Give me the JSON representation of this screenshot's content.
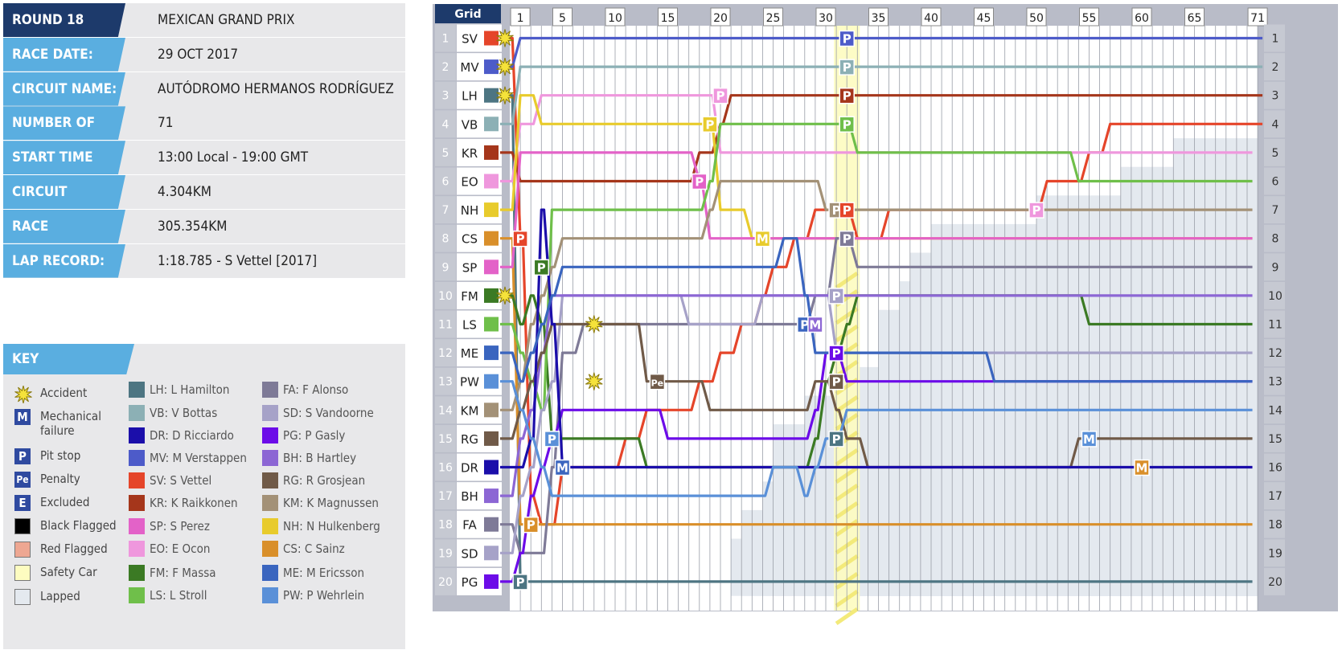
{
  "info": {
    "round": {
      "label": "ROUND 18",
      "value": "MEXICAN GRAND PRIX"
    },
    "rows": [
      {
        "label": "RACE DATE:",
        "value": "29 OCT 2017"
      },
      {
        "label": "CIRCUIT NAME:",
        "value": "AUTÓDROMO HERMANOS RODRÍGUEZ"
      },
      {
        "label": "NUMBER OF LAPS:",
        "value": "71"
      },
      {
        "label": "START TIME",
        "value": "13:00 Local - 19:00 GMT"
      },
      {
        "label": "CIRCUIT LENGTH:",
        "value": "4.304KM"
      },
      {
        "label": "RACE DISTANCE:",
        "value": "305.354KM"
      },
      {
        "label": "LAP RECORD:",
        "value": "1:18.785 - S Vettel [2017]"
      }
    ]
  },
  "key": {
    "title": "KEY",
    "symbols": [
      {
        "icon": "accident-star-icon",
        "label": "Accident"
      },
      {
        "icon": "mechanical-failure-icon",
        "glyph": "M",
        "label": "Mechanical failure"
      },
      {
        "icon": "pit-stop-icon",
        "glyph": "P",
        "label": "Pit stop"
      },
      {
        "icon": "penalty-icon",
        "glyph": "Pe",
        "label": "Penalty"
      },
      {
        "icon": "excluded-icon",
        "glyph": "E",
        "label": "Excluded"
      },
      {
        "icon": "black-flag-icon",
        "color": "#000000",
        "label": "Black Flagged"
      },
      {
        "icon": "red-flag-icon",
        "color": "#eea792",
        "label": "Red Flagged"
      },
      {
        "icon": "safety-car-icon",
        "color": "#fdfcc0",
        "label": "Safety Car"
      },
      {
        "icon": "lapped-icon",
        "color": "#e4e9ef",
        "label": "Lapped"
      }
    ]
  },
  "drivers": [
    {
      "code": "LH",
      "name": "L Hamilton",
      "color": "#4d7582"
    },
    {
      "code": "VB",
      "name": "V Bottas",
      "color": "#8cb0b5"
    },
    {
      "code": "DR",
      "name": "D Ricciardo",
      "color": "#1b0eaa"
    },
    {
      "code": "MV",
      "name": "M Verstappen",
      "color": "#4d5bc9"
    },
    {
      "code": "SV",
      "name": "S Vettel",
      "color": "#e5452a"
    },
    {
      "code": "KR",
      "name": "K Raikkonen",
      "color": "#a5361b"
    },
    {
      "code": "SP",
      "name": "S Perez",
      "color": "#e362c8"
    },
    {
      "code": "EO",
      "name": "E Ocon",
      "color": "#ef97dd"
    },
    {
      "code": "FM",
      "name": "F Massa",
      "color": "#3b7a24"
    },
    {
      "code": "LS",
      "name": "L Stroll",
      "color": "#6fbf4a"
    },
    {
      "code": "FA",
      "name": "F Alonso",
      "color": "#7e7a97"
    },
    {
      "code": "SD",
      "name": "S Vandoorne",
      "color": "#a6a2c8"
    },
    {
      "code": "PG",
      "name": "P Gasly",
      "color": "#6c0ce8"
    },
    {
      "code": "BH",
      "name": "B Hartley",
      "color": "#8c66d4"
    },
    {
      "code": "RG",
      "name": "R Grosjean",
      "color": "#705a48"
    },
    {
      "code": "KM",
      "name": "K Magnussen",
      "color": "#a39177"
    },
    {
      "code": "NH",
      "name": "N Hulkenberg",
      "color": "#e8cb2c"
    },
    {
      "code": "CS",
      "name": "C Sainz",
      "color": "#d98f2a"
    },
    {
      "code": "ME",
      "name": "M Ericsson",
      "color": "#3a65bf"
    },
    {
      "code": "PW",
      "name": "P Wehrlein",
      "color": "#5a90d8"
    }
  ],
  "chart_data": {
    "type": "line",
    "title": "",
    "grid_header": "Grid",
    "total_laps": 71,
    "lap_ticks": [
      1,
      5,
      10,
      15,
      20,
      25,
      30,
      35,
      40,
      45,
      50,
      55,
      60,
      65,
      71
    ],
    "positions": [
      1,
      2,
      3,
      4,
      5,
      6,
      7,
      8,
      9,
      10,
      11,
      12,
      13,
      14,
      15,
      16,
      17,
      18,
      19,
      20
    ],
    "safety_car": [
      [
        31,
        33
      ]
    ],
    "grid_order": [
      "SV",
      "MV",
      "LH",
      "VB",
      "KR",
      "EO",
      "NH",
      "CS",
      "SP",
      "FM",
      "LS",
      "ME",
      "PW",
      "KM",
      "RG",
      "DR",
      "BH",
      "FA",
      "SD",
      "PG"
    ],
    "series": [
      {
        "code": "SV",
        "pos": {
          "0": 1,
          "1": 8,
          "2": 17,
          "3": 18,
          "4": 18,
          "5": 16,
          "6": 16,
          "7": 16,
          "8": 16,
          "9": 16,
          "10": 16,
          "11": 15,
          "12": 15,
          "13": 14,
          "14": 14,
          "15": 14,
          "16": 14,
          "17": 14,
          "18": 13,
          "19": 13,
          "20": 12,
          "21": 12,
          "22": 11,
          "23": 11,
          "24": 10,
          "25": 9,
          "26": 9,
          "27": 8,
          "28": 8,
          "29": 7,
          "30": 7,
          "31": 7,
          "32": 7,
          "33": 8,
          "34": 8,
          "35": 8,
          "36": 7,
          "37": 7,
          "38": 7,
          "39": 7,
          "40": 7,
          "41": 7,
          "42": 7,
          "43": 7,
          "44": 7,
          "45": 7,
          "46": 7,
          "47": 7,
          "48": 7,
          "49": 7,
          "50": 7,
          "51": 6,
          "52": 6,
          "53": 6,
          "54": 6,
          "55": 5,
          "56": 5,
          "57": 4,
          "58": 4,
          "59": 4,
          "60": 4,
          "61": 4,
          "62": 4,
          "63": 4,
          "64": 4,
          "65": 4,
          "66": 4,
          "67": 4,
          "68": 4,
          "69": 4,
          "70": 4
        }
      },
      {
        "code": "MV",
        "pos": {
          "0": 2,
          "1": 1,
          "70": 1
        }
      },
      {
        "code": "LH",
        "pos": {
          "0": 3,
          "1": 20,
          "70": 20
        }
      },
      {
        "code": "VB",
        "pos": {
          "0": 4,
          "1": 2,
          "70": 2
        }
      },
      {
        "code": "KR",
        "pos": {
          "0": 5,
          "1": 6,
          "17": 6,
          "18": 5,
          "19": 5,
          "20": 4,
          "21": 3,
          "70": 3
        }
      },
      {
        "code": "EO",
        "pos": {
          "0": 6,
          "1": 4,
          "2": 4,
          "3": 3,
          "4": 3,
          "5": 3,
          "6": 3,
          "7": 3,
          "8": 3,
          "9": 3,
          "10": 3,
          "11": 3,
          "12": 3,
          "13": 3,
          "14": 3,
          "15": 3,
          "16": 3,
          "17": 3,
          "18": 3,
          "19": 3,
          "20": 5,
          "21": 5,
          "70": 5
        }
      },
      {
        "code": "NH",
        "pos": {
          "0": 7,
          "1": 3,
          "2": 3,
          "3": 4,
          "18": 4,
          "19": 4,
          "20": 7,
          "21": 7,
          "22": 7,
          "23": 8,
          "70": 8
        }
      },
      {
        "code": "CS",
        "pos": {
          "0": 8,
          "1": 18,
          "70": 18
        }
      },
      {
        "code": "SP",
        "pos": {
          "0": 9,
          "1": 5,
          "2": 5,
          "3": 5,
          "4": 5,
          "5": 5,
          "6": 5,
          "17": 5,
          "18": 6,
          "19": 8,
          "20": 8,
          "21": 8,
          "70": 8
        }
      },
      {
        "code": "FM",
        "pos": {
          "0": 10,
          "1": 11,
          "2": 10,
          "3": 11,
          "4": 15,
          "5": 15,
          "6": 15,
          "7": 15,
          "8": 15,
          "9": 15,
          "10": 15,
          "11": 15,
          "12": 15,
          "13": 16,
          "14": 16,
          "15": 16,
          "28": 16,
          "29": 15,
          "30": 13,
          "31": 12,
          "32": 11,
          "33": 10,
          "34": 10,
          "54": 10,
          "55": 11,
          "70": 11
        }
      },
      {
        "code": "LS",
        "pos": {
          "0": 11,
          "1": 12,
          "2": 13,
          "3": 14,
          "4": 7,
          "5": 7,
          "18": 7,
          "19": 6,
          "20": 4,
          "21": 4,
          "32": 4,
          "33": 5,
          "53": 5,
          "54": 6,
          "70": 6
        }
      },
      {
        "code": "FA",
        "pos": {
          "0": 18,
          "1": 19,
          "3": 19,
          "4": 16,
          "5": 12,
          "6": 12,
          "7": 11,
          "8": 11,
          "9": 11,
          "10": 11,
          "11": 11,
          "12": 11,
          "28": 11,
          "29": 10,
          "30": 10,
          "31": 8,
          "32": 8,
          "33": 9,
          "34": 9,
          "70": 9
        }
      },
      {
        "code": "SD",
        "pos": {
          "0": 19,
          "1": 17,
          "2": 16,
          "3": 14,
          "4": 13,
          "5": 10,
          "6": 10,
          "7": 10,
          "8": 10,
          "9": 10,
          "10": 10,
          "11": 10,
          "12": 10,
          "13": 10,
          "14": 10,
          "15": 10,
          "16": 10,
          "17": 11,
          "18": 11,
          "19": 11,
          "20": 11,
          "23": 11,
          "24": 10,
          "25": 10,
          "26": 10,
          "27": 10,
          "28": 10,
          "29": 10,
          "30": 10,
          "31": 12,
          "32": 12,
          "70": 12
        }
      },
      {
        "code": "PG",
        "pos": {
          "0": 20,
          "1": 19,
          "2": 17,
          "3": 16,
          "4": 15,
          "5": 14,
          "6": 14,
          "7": 14,
          "8": 14,
          "9": 14,
          "10": 14,
          "11": 14,
          "12": 14,
          "13": 14,
          "14": 14,
          "15": 15,
          "16": 15,
          "17": 15,
          "18": 15,
          "19": 15,
          "20": 15,
          "21": 15,
          "22": 15,
          "23": 15,
          "24": 15,
          "25": 15,
          "26": 15,
          "27": 15,
          "28": 15,
          "29": 14,
          "30": 12,
          "31": 12,
          "32": 13,
          "70": 13
        }
      },
      {
        "code": "BH",
        "pos": {
          "0": 17,
          "1": 15,
          "2": 14,
          "3": 12,
          "4": 10,
          "5": 10,
          "70": 10
        }
      },
      {
        "code": "RG",
        "pos": {
          "0": 15,
          "1": 14,
          "2": 13,
          "3": 12,
          "4": 11,
          "5": 11,
          "12": 11,
          "13": 13,
          "14": 13,
          "15": 13,
          "16": 13,
          "17": 13,
          "18": 13,
          "19": 14,
          "20": 14,
          "28": 14,
          "29": 13,
          "30": 13,
          "31": 14,
          "32": 15,
          "33": 15,
          "34": 16,
          "35": 16,
          "53": 16,
          "54": 15,
          "70": 15
        }
      },
      {
        "code": "KM",
        "pos": {
          "0": 14,
          "1": 13,
          "2": 11,
          "3": 10,
          "4": 9,
          "5": 8,
          "6": 8,
          "18": 8,
          "19": 7,
          "20": 6,
          "21": 6,
          "29": 6,
          "30": 7,
          "31": 7,
          "32": 7,
          "33": 7,
          "70": 7
        }
      },
      {
        "code": "DR",
        "pos": {
          "0": 16,
          "1": 16,
          "2": 15,
          "3": 7,
          "4": 11,
          "5": 16,
          "6": 16,
          "70": 16
        }
      },
      {
        "code": "ME",
        "pos": {
          "0": 12,
          "1": 13,
          "2": 12,
          "3": 11,
          "4": 10,
          "5": 9,
          "6": 9,
          "25": 9,
          "26": 8,
          "27": 8,
          "28": 10,
          "29": 12,
          "30": 12,
          "31": 12,
          "32": 12,
          "33": 12,
          "45": 12,
          "46": 13,
          "70": 13
        }
      },
      {
        "code": "PW",
        "pos": {
          "0": 13,
          "1": 14,
          "2": 15,
          "3": 16,
          "4": 17,
          "5": 17,
          "6": 17,
          "7": 17,
          "8": 17,
          "9": 17,
          "10": 17,
          "11": 17,
          "12": 17,
          "13": 17,
          "14": 17,
          "15": 17,
          "16": 17,
          "17": 17,
          "18": 17,
          "19": 17,
          "20": 17,
          "21": 17,
          "22": 17,
          "23": 17,
          "24": 17,
          "25": 16,
          "26": 16,
          "27": 16,
          "28": 17,
          "29": 16,
          "30": 15,
          "31": 15,
          "32": 14,
          "33": 14,
          "70": 14
        }
      }
    ],
    "events": [
      {
        "type": "accident",
        "lap": 0,
        "pos": 1
      },
      {
        "type": "accident",
        "lap": 0,
        "pos": 2
      },
      {
        "type": "accident",
        "lap": 0,
        "pos": 3
      },
      {
        "type": "accident",
        "lap": 0,
        "pos": 10
      },
      {
        "type": "accident",
        "lap": 8,
        "pos": 11
      },
      {
        "type": "accident",
        "lap": 8,
        "pos": 13
      },
      {
        "type": "pit",
        "lap": 1,
        "pos": 8,
        "driver": "SV"
      },
      {
        "type": "pit",
        "lap": 2,
        "pos": 18,
        "driver": "CS"
      },
      {
        "type": "pit",
        "lap": 3,
        "pos": 9,
        "driver": "FM"
      },
      {
        "type": "pit",
        "lap": 4,
        "pos": 15,
        "driver": "PW"
      },
      {
        "type": "mechanical",
        "lap": 5,
        "pos": 16,
        "driver": "ME"
      },
      {
        "type": "pit",
        "lap": 1,
        "pos": 20,
        "driver": "LH"
      },
      {
        "type": "penalty",
        "lap": 14,
        "pos": 13,
        "driver": "RG"
      },
      {
        "type": "pit",
        "lap": 19,
        "pos": 4,
        "driver": "NH"
      },
      {
        "type": "pit",
        "lap": 20,
        "pos": 3,
        "driver": "EO"
      },
      {
        "type": "pit",
        "lap": 18,
        "pos": 6,
        "driver": "SP"
      },
      {
        "type": "mechanical",
        "lap": 24,
        "pos": 8,
        "driver": "NH"
      },
      {
        "type": "pit",
        "lap": 28,
        "pos": 11,
        "driver": "ME"
      },
      {
        "type": "mechanical",
        "lap": 29,
        "pos": 11,
        "driver": "BH"
      },
      {
        "type": "pit",
        "lap": 32,
        "pos": 1,
        "driver": "MV"
      },
      {
        "type": "pit",
        "lap": 32,
        "pos": 2,
        "driver": "VB"
      },
      {
        "type": "pit",
        "lap": 32,
        "pos": 3,
        "driver": "KR"
      },
      {
        "type": "pit",
        "lap": 32,
        "pos": 4,
        "driver": "LS"
      },
      {
        "type": "pit",
        "lap": 31,
        "pos": 7,
        "driver": "KM"
      },
      {
        "type": "pit",
        "lap": 32,
        "pos": 7,
        "driver": "SV"
      },
      {
        "type": "pit",
        "lap": 32,
        "pos": 8,
        "driver": "FA"
      },
      {
        "type": "pit",
        "lap": 31,
        "pos": 10,
        "driver": "SD"
      },
      {
        "type": "pit",
        "lap": 31,
        "pos": 12,
        "driver": "PG"
      },
      {
        "type": "pit",
        "lap": 31,
        "pos": 13,
        "driver": "RG"
      },
      {
        "type": "pit",
        "lap": 31,
        "pos": 15,
        "driver": "LH"
      },
      {
        "type": "pit",
        "lap": 50,
        "pos": 7,
        "driver": "EO"
      },
      {
        "type": "mechanical",
        "lap": 55,
        "pos": 15,
        "driver": "PW"
      },
      {
        "type": "mechanical",
        "lap": 60,
        "pos": 16,
        "driver": "CS"
      }
    ],
    "lapped": [
      {
        "from_lap": 21,
        "from_pos": 19
      },
      {
        "from_lap": 22,
        "from_pos": 18
      },
      {
        "from_lap": 24,
        "from_pos": 17
      },
      {
        "from_lap": 25,
        "from_pos": 15
      },
      {
        "from_lap": 28,
        "from_pos": 14
      },
      {
        "from_lap": 31,
        "from_pos": 13
      },
      {
        "from_lap": 35,
        "from_pos": 11
      },
      {
        "from_lap": 37,
        "from_pos": 10
      },
      {
        "from_lap": 38,
        "from_pos": 9
      },
      {
        "from_lap": 40,
        "from_pos": 8
      },
      {
        "from_lap": 50,
        "from_pos": 7
      },
      {
        "from_lap": 58,
        "from_pos": 6
      },
      {
        "from_lap": 63,
        "from_pos": 5
      }
    ]
  }
}
